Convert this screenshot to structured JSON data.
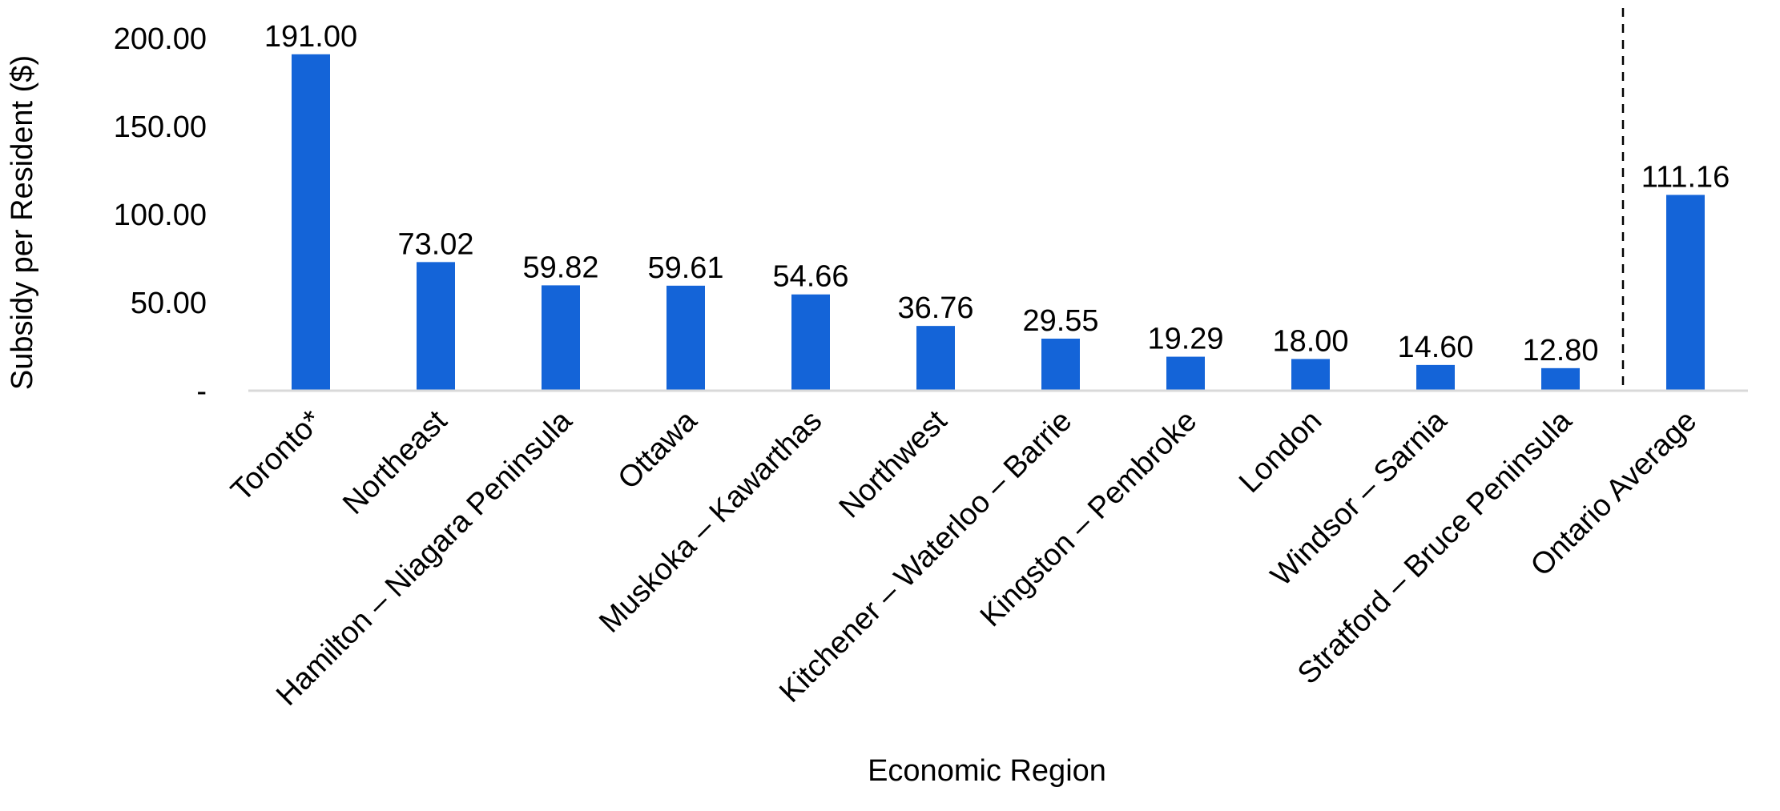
{
  "chart_data": {
    "type": "bar",
    "title": "",
    "xlabel": "Economic Region",
    "ylabel": "Subsidy per Resident ($)",
    "ylim": [
      0,
      200
    ],
    "yticks": [
      {
        "value": 0,
        "label": "-"
      },
      {
        "value": 50,
        "label": "50.00"
      },
      {
        "value": 100,
        "label": "100.00"
      },
      {
        "value": 150,
        "label": "150.00"
      },
      {
        "value": 200,
        "label": "200.00"
      }
    ],
    "categories": [
      "Toronto*",
      "Northeast",
      "Hamilton – Niagara Peninsula",
      "Ottawa",
      "Muskoka – Kawarthas",
      "Northwest",
      "Kitchener – Waterloo – Barrie",
      "Kingston – Pembroke",
      "London",
      "Windsor – Sarnia",
      "Stratford – Bruce Peninsula",
      "Ontario Average"
    ],
    "values": [
      191.0,
      73.02,
      59.82,
      59.61,
      54.66,
      36.76,
      29.55,
      19.29,
      18.0,
      14.6,
      12.8,
      111.16
    ],
    "data_labels": [
      "191.00",
      "73.02",
      "59.82",
      "59.61",
      "54.66",
      "36.76",
      "29.55",
      "19.29",
      "18.00",
      "14.60",
      "12.80",
      "111.16"
    ],
    "bar_color": "#1464d8",
    "grid": false,
    "legend": "none",
    "separator": "dashed vertical line before Ontario Average"
  }
}
